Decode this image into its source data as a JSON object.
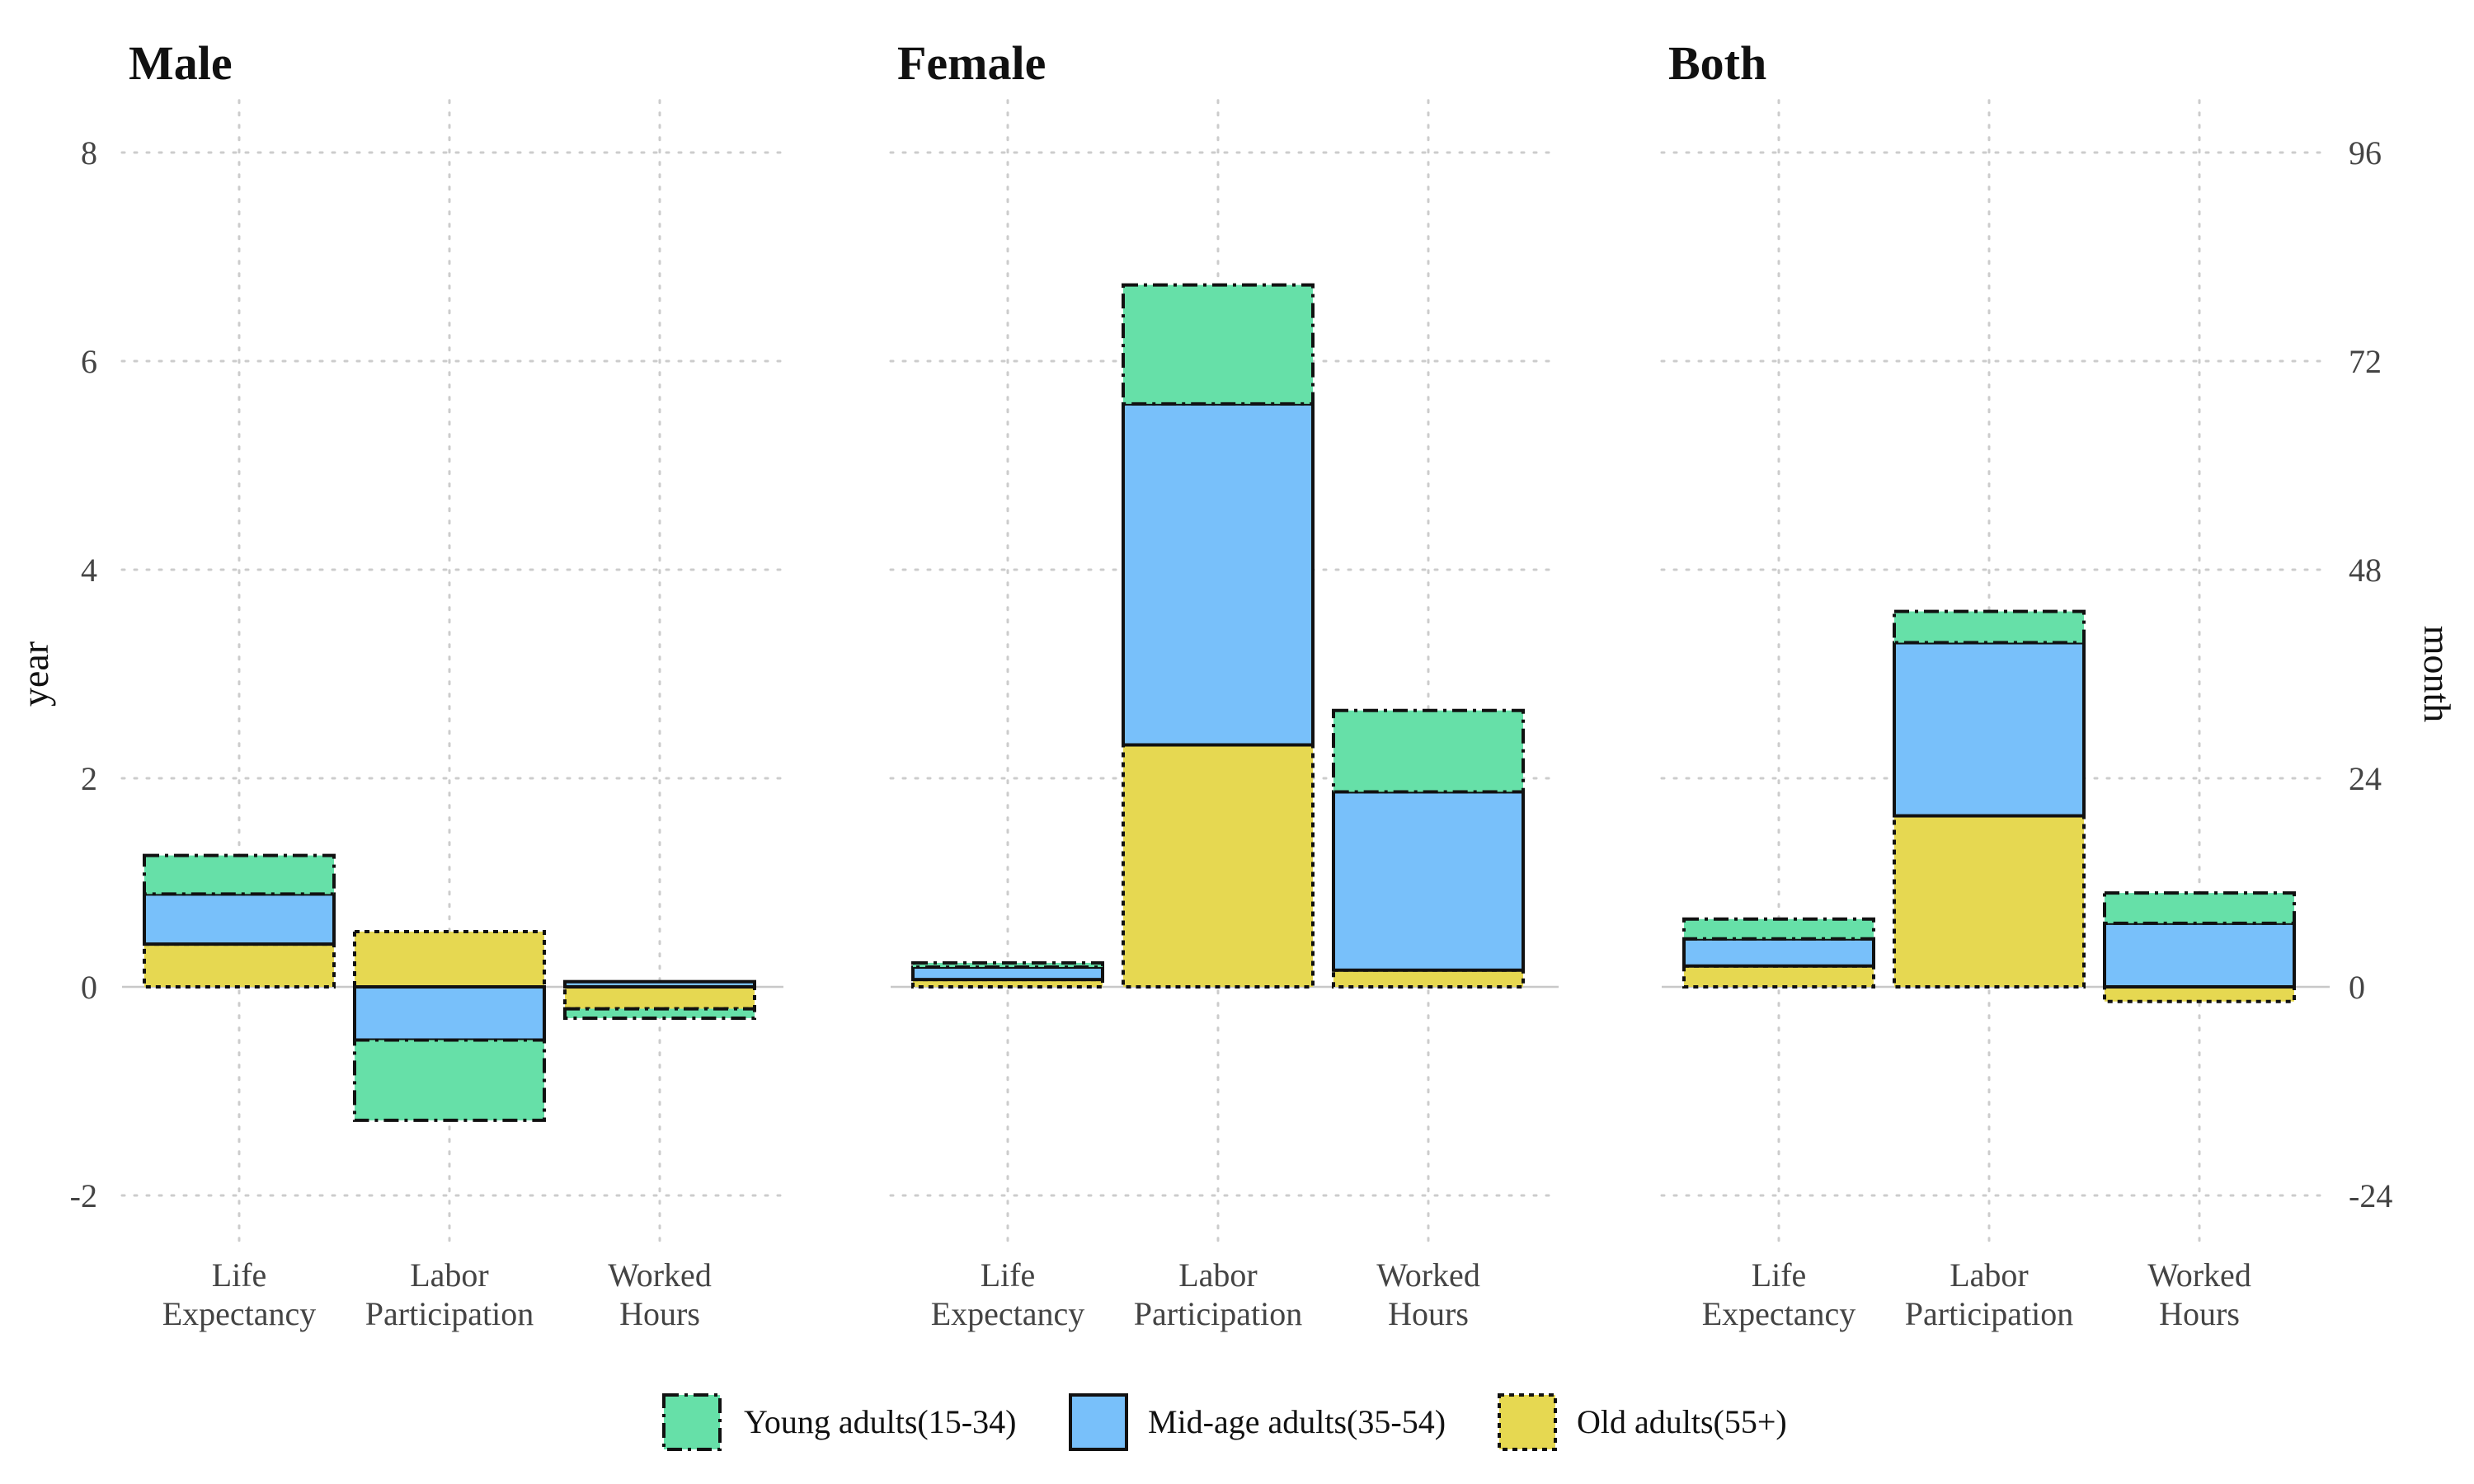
{
  "chart_data": {
    "type": "bar",
    "stacked": true,
    "panels": [
      "Male",
      "Female",
      "Both"
    ],
    "categories": [
      [
        "Life",
        "Expectancy"
      ],
      [
        "Labor",
        "Participation"
      ],
      [
        "Worked",
        "Hours"
      ]
    ],
    "series": [
      {
        "name": "Young adults(15-34)",
        "color": "#66E0A8",
        "line": "longdash",
        "values": {
          "Male": [
            0.37,
            -0.77,
            -0.09
          ],
          "Female": [
            0.04,
            1.14,
            0.78
          ],
          "Both": [
            0.19,
            0.3,
            0.29
          ]
        }
      },
      {
        "name": "Mid-age adults(35-54)",
        "color": "#78C0FA",
        "line": "solid",
        "values": {
          "Male": [
            0.48,
            -0.51,
            0.05
          ],
          "Female": [
            0.12,
            3.27,
            1.71
          ],
          "Both": [
            0.26,
            1.66,
            0.61
          ]
        }
      },
      {
        "name": "Old adults(55+)",
        "color": "#E6D851",
        "line": "dotted",
        "values": {
          "Male": [
            0.41,
            0.53,
            -0.21
          ],
          "Female": [
            0.07,
            2.32,
            0.16
          ],
          "Both": [
            0.2,
            1.64,
            -0.14
          ]
        }
      }
    ],
    "stack_order_bottom_to_top": [
      "Old adults(55+)",
      "Mid-age adults(35-54)",
      "Young adults(15-34)"
    ],
    "ylabel": "year",
    "ylim": [
      -2.5,
      8.5
    ],
    "yticks": [
      -2,
      0,
      2,
      4,
      6,
      8
    ],
    "ytick_labels": [
      "-2",
      "0",
      "2",
      "4",
      "6",
      "8"
    ],
    "secondary_ylabel": "month",
    "secondary_yticks": [
      -24,
      0,
      24,
      48,
      72,
      96
    ],
    "secondary_ytick_labels": [
      "-24",
      "0",
      "24",
      "48",
      "72",
      "96"
    ],
    "grid": true,
    "legend_position": "bottom"
  }
}
